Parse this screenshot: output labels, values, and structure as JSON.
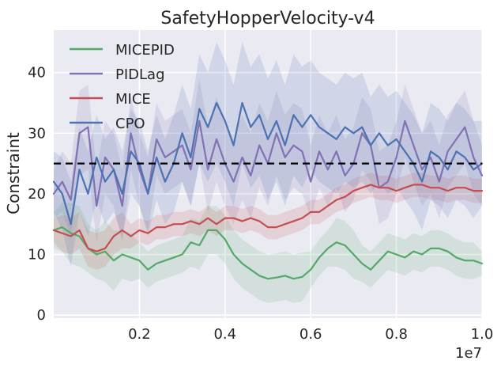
{
  "chart_data": {
    "type": "line",
    "title": "SafetyHopperVelocity-v4",
    "xlabel": "",
    "ylabel": "Constraint",
    "x_offset_label": "1e7",
    "xlim": [
      0,
      1.0
    ],
    "ylim": [
      -0.5,
      47
    ],
    "xticks": [
      0.2,
      0.4,
      0.6,
      0.8,
      1.0
    ],
    "xtick_labels": [
      "0.2",
      "0.4",
      "0.6",
      "0.8",
      "1.0"
    ],
    "yticks": [
      0,
      10,
      20,
      30,
      40
    ],
    "ytick_labels": [
      "0",
      "10",
      "20",
      "30",
      "40"
    ],
    "grid": true,
    "legend_position": "top-left",
    "threshold": {
      "y": 25,
      "style": "dashed",
      "color": "#000000"
    },
    "colors": {
      "background": "#eaeaf2",
      "MICEPID": "#55a868",
      "PIDLag": "#8172b3",
      "MICE": "#c44e52",
      "CPO": "#4c72b0"
    },
    "series": [
      {
        "name": "MICEPID",
        "color": "#55a868",
        "x": [
          0.0,
          0.02,
          0.04,
          0.06,
          0.08,
          0.1,
          0.12,
          0.14,
          0.16,
          0.18,
          0.2,
          0.22,
          0.24,
          0.26,
          0.28,
          0.3,
          0.32,
          0.34,
          0.36,
          0.38,
          0.4,
          0.42,
          0.44,
          0.46,
          0.48,
          0.5,
          0.52,
          0.54,
          0.56,
          0.58,
          0.6,
          0.62,
          0.64,
          0.66,
          0.68,
          0.7,
          0.72,
          0.74,
          0.76,
          0.78,
          0.8,
          0.82,
          0.84,
          0.86,
          0.88,
          0.9,
          0.92,
          0.94,
          0.96,
          0.98,
          1.0
        ],
        "values": [
          14,
          14.5,
          13.5,
          13,
          11,
          10,
          10.5,
          9,
          10,
          9.5,
          9,
          7.5,
          8.5,
          9,
          9.5,
          10,
          12,
          11.5,
          14,
          14,
          12.5,
          10,
          8.5,
          7.5,
          6.5,
          6,
          6.2,
          6.5,
          6,
          6.3,
          7.5,
          9.5,
          11,
          12,
          11.5,
          10,
          8.5,
          7.5,
          9,
          10.5,
          10,
          9.5,
          10.5,
          10,
          11,
          11,
          10.5,
          9.5,
          9,
          9,
          8.5
        ],
        "band_halfwidth": [
          3,
          4,
          5,
          5,
          4,
          4,
          5,
          5,
          4,
          4,
          3,
          3,
          3,
          3,
          3,
          3,
          4,
          4,
          4,
          4,
          4,
          4,
          4,
          4,
          4,
          4,
          4,
          4,
          4,
          4,
          3,
          3,
          3,
          4,
          4,
          4,
          3,
          3,
          3,
          3,
          3,
          3,
          3,
          3,
          3,
          3,
          3,
          3,
          3,
          3,
          2
        ]
      },
      {
        "name": "PIDLag",
        "color": "#8172b3",
        "x": [
          0.0,
          0.02,
          0.04,
          0.06,
          0.08,
          0.1,
          0.12,
          0.14,
          0.16,
          0.18,
          0.2,
          0.22,
          0.24,
          0.26,
          0.28,
          0.3,
          0.32,
          0.34,
          0.36,
          0.38,
          0.4,
          0.42,
          0.44,
          0.46,
          0.48,
          0.5,
          0.52,
          0.54,
          0.56,
          0.58,
          0.6,
          0.62,
          0.64,
          0.66,
          0.68,
          0.7,
          0.72,
          0.74,
          0.76,
          0.78,
          0.8,
          0.82,
          0.84,
          0.86,
          0.88,
          0.9,
          0.92,
          0.94,
          0.96,
          0.98,
          1.0
        ],
        "values": [
          20,
          22,
          19,
          30,
          31,
          18,
          26,
          24,
          18,
          30,
          24,
          20,
          29,
          26,
          27,
          28,
          24,
          32,
          24,
          29,
          25,
          22,
          26,
          23,
          28,
          25,
          30,
          26,
          28,
          27,
          22,
          27,
          24,
          27,
          23,
          25,
          30,
          28,
          21,
          22,
          26,
          32,
          28,
          24,
          26,
          22,
          27,
          29,
          31,
          26,
          23
        ],
        "band_halfwidth": [
          4,
          5,
          6,
          7,
          7,
          6,
          6,
          6,
          6,
          6,
          6,
          6,
          6,
          6,
          6,
          6,
          6,
          7,
          7,
          7,
          7,
          7,
          7,
          7,
          7,
          7,
          7,
          7,
          7,
          7,
          6,
          6,
          6,
          6,
          6,
          6,
          6,
          6,
          6,
          6,
          6,
          6,
          6,
          6,
          6,
          6,
          6,
          6,
          6,
          6,
          5
        ]
      },
      {
        "name": "MICE",
        "color": "#c44e52",
        "x": [
          0.0,
          0.02,
          0.04,
          0.06,
          0.08,
          0.1,
          0.12,
          0.14,
          0.16,
          0.18,
          0.2,
          0.22,
          0.24,
          0.26,
          0.28,
          0.3,
          0.32,
          0.34,
          0.36,
          0.38,
          0.4,
          0.42,
          0.44,
          0.46,
          0.48,
          0.5,
          0.52,
          0.54,
          0.56,
          0.58,
          0.6,
          0.62,
          0.64,
          0.66,
          0.68,
          0.7,
          0.72,
          0.74,
          0.76,
          0.78,
          0.8,
          0.82,
          0.84,
          0.86,
          0.88,
          0.9,
          0.92,
          0.94,
          0.96,
          0.98,
          1.0
        ],
        "values": [
          14,
          13.5,
          13,
          14,
          11,
          10.5,
          11,
          13,
          14,
          13,
          14,
          13.5,
          14.5,
          14.5,
          15,
          15,
          15.5,
          15,
          16,
          15,
          16,
          16,
          15.5,
          16,
          15.5,
          14.5,
          14.5,
          15,
          15.5,
          16,
          17,
          17,
          18,
          19,
          19.5,
          20.5,
          21,
          21.5,
          21,
          21,
          20.5,
          21,
          21.5,
          21.5,
          21,
          21,
          20.5,
          21,
          21,
          20.5,
          20.5
        ],
        "band_halfwidth": [
          2,
          3,
          3,
          3,
          3,
          3,
          3,
          3,
          3,
          2,
          2,
          2,
          2,
          2,
          2,
          2,
          2,
          2,
          2,
          2,
          2,
          2,
          2,
          2,
          2,
          2,
          2,
          2,
          2,
          2,
          2,
          2,
          2,
          2,
          2,
          2,
          2,
          2,
          2,
          2,
          2,
          2,
          2,
          2,
          2,
          2,
          2,
          2,
          2,
          2,
          2
        ]
      },
      {
        "name": "CPO",
        "color": "#4c72b0",
        "x": [
          0.0,
          0.02,
          0.04,
          0.06,
          0.08,
          0.1,
          0.12,
          0.14,
          0.16,
          0.18,
          0.2,
          0.22,
          0.24,
          0.26,
          0.28,
          0.3,
          0.32,
          0.34,
          0.36,
          0.38,
          0.4,
          0.42,
          0.44,
          0.46,
          0.48,
          0.5,
          0.52,
          0.54,
          0.56,
          0.58,
          0.6,
          0.62,
          0.64,
          0.66,
          0.68,
          0.7,
          0.72,
          0.74,
          0.76,
          0.78,
          0.8,
          0.82,
          0.84,
          0.86,
          0.88,
          0.9,
          0.92,
          0.94,
          0.96,
          0.98,
          1.0
        ],
        "values": [
          22,
          20,
          15,
          24,
          20,
          26,
          22,
          24,
          20,
          27,
          25,
          20,
          26,
          22,
          25,
          30,
          26,
          34,
          31,
          35,
          32,
          28,
          35,
          31,
          33,
          29,
          32,
          28,
          33,
          31,
          33,
          31,
          30,
          29,
          31,
          30,
          31,
          28,
          30,
          28,
          29,
          27,
          25,
          22,
          27,
          26,
          24,
          27,
          26,
          24,
          25
        ],
        "band_halfwidth": [
          5,
          6,
          7,
          7,
          7,
          7,
          7,
          7,
          7,
          7,
          7,
          7,
          7,
          7,
          8,
          8,
          8,
          9,
          9,
          10,
          10,
          10,
          10,
          10,
          10,
          10,
          10,
          10,
          10,
          10,
          9,
          9,
          9,
          9,
          9,
          9,
          9,
          8,
          8,
          8,
          8,
          8,
          8,
          8,
          8,
          8,
          8,
          8,
          8,
          8,
          7
        ]
      }
    ]
  }
}
